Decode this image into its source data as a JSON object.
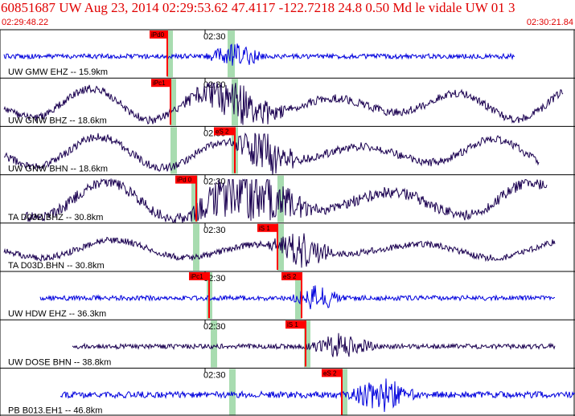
{
  "header": {
    "title": "60851687 UW Aug 23, 2014 02:29:53.62    47.4117 -122.7218 24.8 0.50 Md le vidale UW 01    3",
    "start_time": "02:29:48.22",
    "end_time": "02:30:21.84"
  },
  "time_tick_label": "02:30",
  "colors": {
    "header_text": "#e00000",
    "trace_blue": "#0000dd",
    "trace_dark": "#1a0050",
    "pick_flag": "#ff0000",
    "window_band": "#a8dcb0",
    "frame": "#000000"
  },
  "traces": [
    {
      "label": "UW GMW EHZ -- 15.9km",
      "pick": "iPd0",
      "pick2": "",
      "color": "blue"
    },
    {
      "label": "UW GNW BHZ -- 18.6km",
      "pick": "iPc1",
      "pick2": "",
      "color": "dark"
    },
    {
      "label": "UW GNW BHN -- 18.6km",
      "pick": "",
      "pick2": "eS 2",
      "color": "dark"
    },
    {
      "label": "TA D03D.BHZ -- 30.8km",
      "pick": "iPd 0",
      "pick2": "",
      "color": "dark"
    },
    {
      "label": "TA D03D.BHN -- 30.8km",
      "pick": "",
      "pick2": "iS 1",
      "color": "dark"
    },
    {
      "label": "UW HDW EHZ -- 36.3km",
      "pick": "iPc1",
      "pick2": "eS 2",
      "color": "blue"
    },
    {
      "label": "UW DOSE BHN -- 38.8km",
      "pick": "",
      "pick2": "iS 1",
      "color": "dark"
    },
    {
      "label": "PB B013.EH1 -- 46.8km",
      "pick": "",
      "pick2": "eS 2",
      "color": "blue"
    }
  ]
}
